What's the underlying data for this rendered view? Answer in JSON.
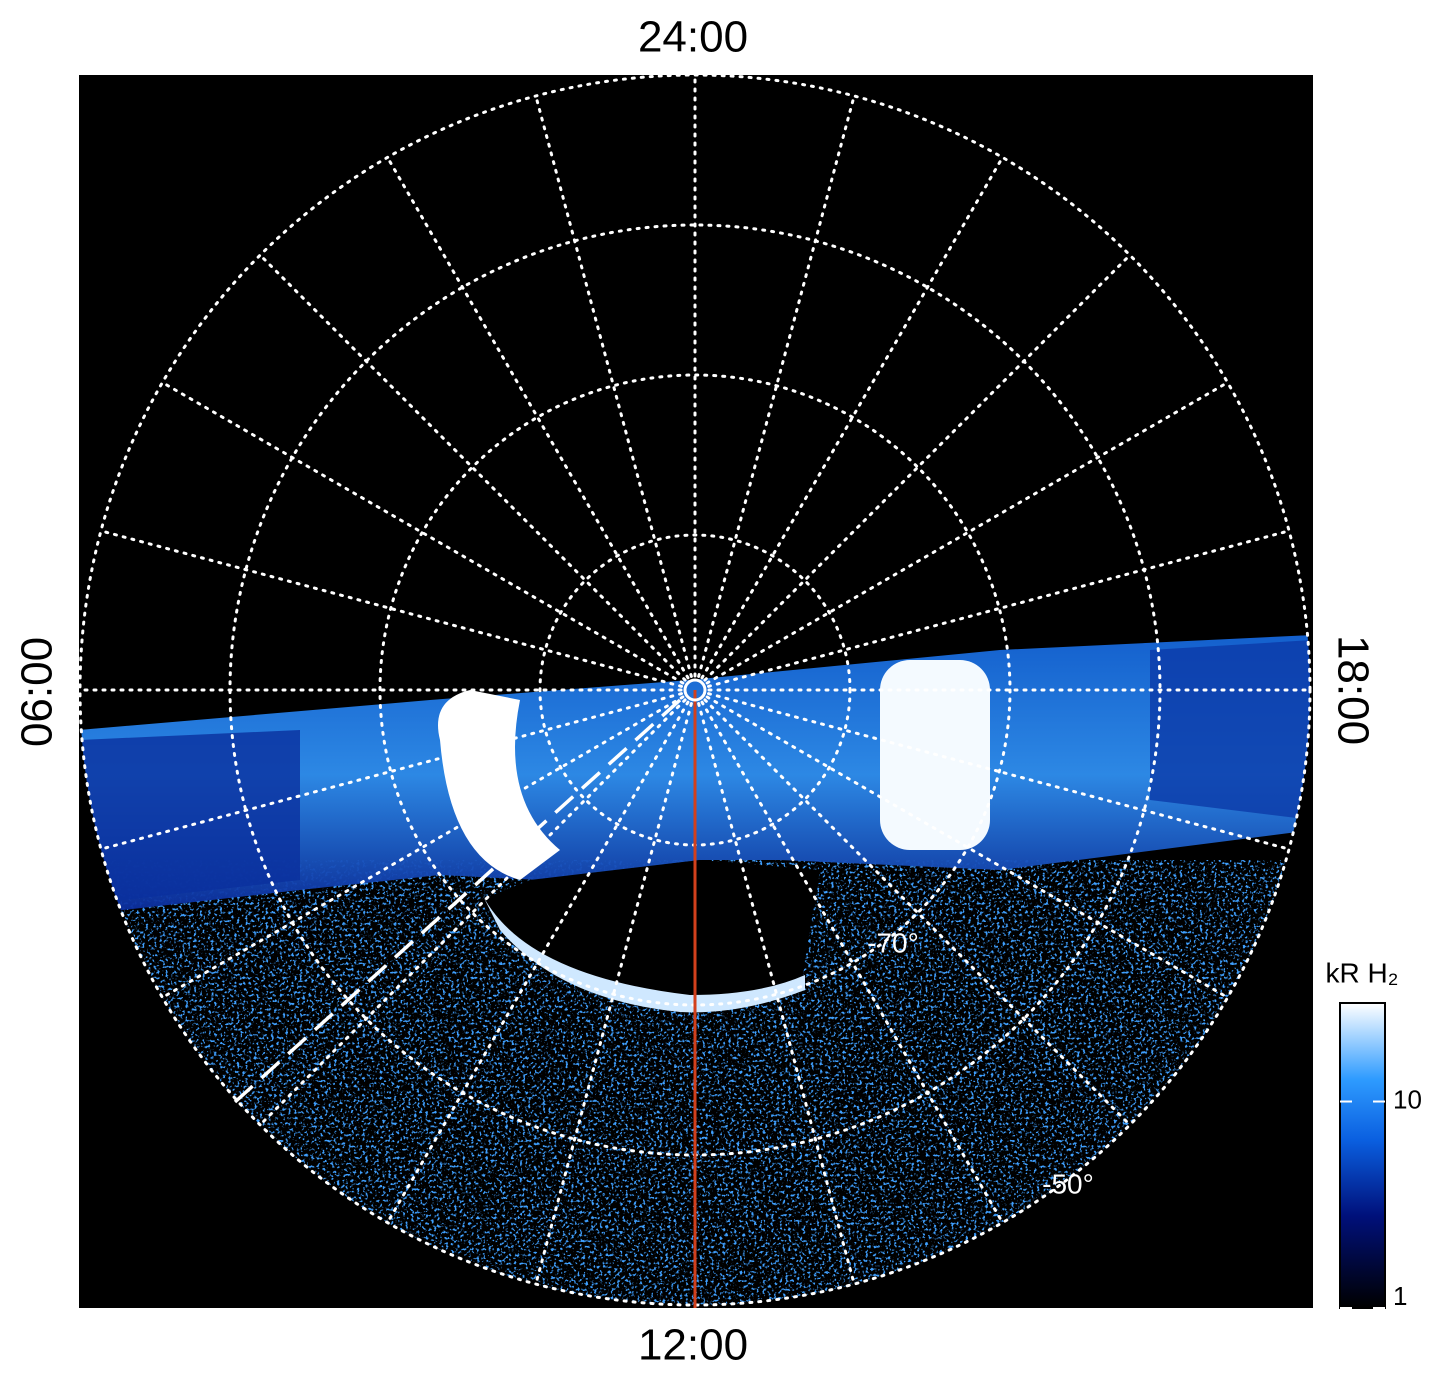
{
  "chart_data": {
    "type": "polar-image",
    "local_time_labels": {
      "top": "24:00",
      "left": "06:00",
      "bottom": "12:00",
      "right": "18:00"
    },
    "latitude_labels": [
      "-70°",
      "-50°"
    ],
    "colorbar": {
      "label": "kR H₂",
      "scale": "log",
      "lim": [
        1,
        30
      ],
      "ticks": [
        1,
        10
      ]
    }
  }
}
